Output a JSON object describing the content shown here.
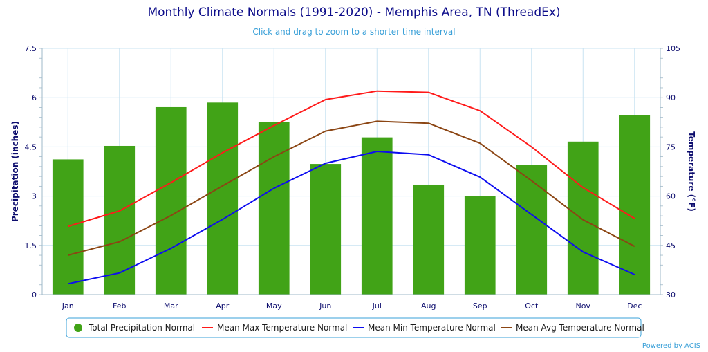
{
  "chart_data": {
    "type": "bar",
    "title": "Monthly Climate Normals (1991-2020) - Memphis Area, TN (ThreadEx)",
    "subtitle": "Click and drag to zoom to a shorter time interval",
    "credit": "Powered by ACIS",
    "categories": [
      "Jan",
      "Feb",
      "Mar",
      "Apr",
      "May",
      "Jun",
      "Jul",
      "Aug",
      "Sep",
      "Oct",
      "Nov",
      "Dec"
    ],
    "y_left": {
      "label": "Precipitation (inches)",
      "ticks": [
        "0",
        "1.5",
        "3",
        "4.5",
        "6",
        "7.5"
      ],
      "range": [
        0,
        7.5
      ]
    },
    "y_right": {
      "label": "Temperature (°F)",
      "ticks": [
        "30",
        "45",
        "60",
        "75",
        "90",
        "105"
      ],
      "range": [
        30,
        105
      ]
    },
    "grid": true,
    "legend_position": "bottom",
    "series": [
      {
        "name": "Total Precipitation Normal",
        "kind": "bar",
        "axis": "left",
        "color": "#41a317",
        "values": [
          4.12,
          4.53,
          5.71,
          5.85,
          5.26,
          3.98,
          4.79,
          3.35,
          3.0,
          3.95,
          4.66,
          5.47
        ]
      },
      {
        "name": "Mean Max Temperature Normal",
        "kind": "line",
        "axis": "right",
        "color": "#ff1a1a",
        "values": [
          50.8,
          55.5,
          64.1,
          73.2,
          81.5,
          89.4,
          92.0,
          91.6,
          86.0,
          75.0,
          62.6,
          53.2
        ]
      },
      {
        "name": "Mean Min Temperature Normal",
        "kind": "line",
        "axis": "right",
        "color": "#0d0df0",
        "values": [
          33.3,
          36.6,
          44.1,
          52.9,
          62.4,
          70.0,
          73.6,
          72.6,
          65.8,
          54.4,
          43.0,
          36.1
        ]
      },
      {
        "name": "Mean Avg Temperature Normal",
        "kind": "line",
        "axis": "right",
        "color": "#8b4513",
        "values": [
          42.0,
          46.1,
          54.1,
          63.1,
          72.0,
          79.8,
          82.8,
          82.2,
          76.1,
          64.7,
          52.8,
          44.7
        ]
      }
    ]
  }
}
